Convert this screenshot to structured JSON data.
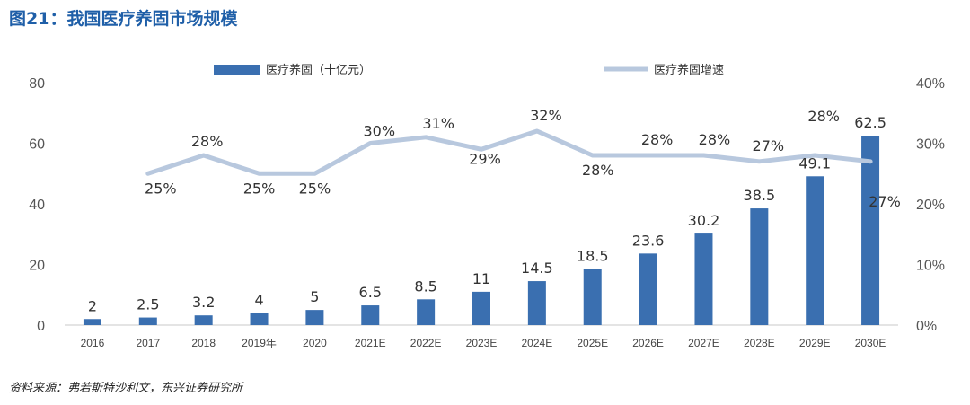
{
  "header": {
    "title": "图21：我国医疗养固市场规模"
  },
  "footer": {
    "source": "资料来源：弗若斯特沙利文，东兴证券研究所"
  },
  "chart_data": {
    "type": "bar",
    "categories": [
      "2016",
      "2017",
      "2018",
      "2019年",
      "2020",
      "2021E",
      "2022E",
      "2023E",
      "2024E",
      "2025E",
      "2026E",
      "2027E",
      "2028E",
      "2029E",
      "2030E"
    ],
    "series": [
      {
        "name": "医疗养固（十亿元）",
        "type": "bar",
        "axis": "left",
        "color": "#3a6fb0",
        "values": [
          2,
          2.5,
          3.2,
          4,
          5,
          6.5,
          8.5,
          11,
          14.5,
          18.5,
          23.6,
          30.2,
          38.5,
          49.1,
          62.5
        ],
        "labels": [
          "2",
          "2.5",
          "3.2",
          "4",
          "5",
          "6.5",
          "8.5",
          "11",
          "14.5",
          "18.5",
          "23.6",
          "30.2",
          "38.5",
          "49.1",
          "62.5"
        ]
      },
      {
        "name": "医疗养固增速",
        "type": "line",
        "axis": "right",
        "color": "#b8c8de",
        "values": [
          null,
          25,
          28,
          25,
          25,
          30,
          31,
          29,
          32,
          28,
          28,
          28,
          27,
          28,
          27
        ],
        "labels": [
          null,
          "25%",
          "28%",
          "25%",
          "25%",
          "30%",
          "31%",
          "29%",
          "32%",
          "28%",
          "28%",
          "28%",
          "27%",
          "28%",
          "27%"
        ]
      }
    ],
    "y_left": {
      "min": 0,
      "max": 80,
      "ticks": [
        "0",
        "20",
        "40",
        "60",
        "80"
      ]
    },
    "y_right": {
      "min": 0,
      "max": 40,
      "ticks": [
        "0%",
        "10%",
        "20%",
        "30%",
        "40%"
      ]
    },
    "legend": {
      "position": "top"
    },
    "grid": false
  }
}
